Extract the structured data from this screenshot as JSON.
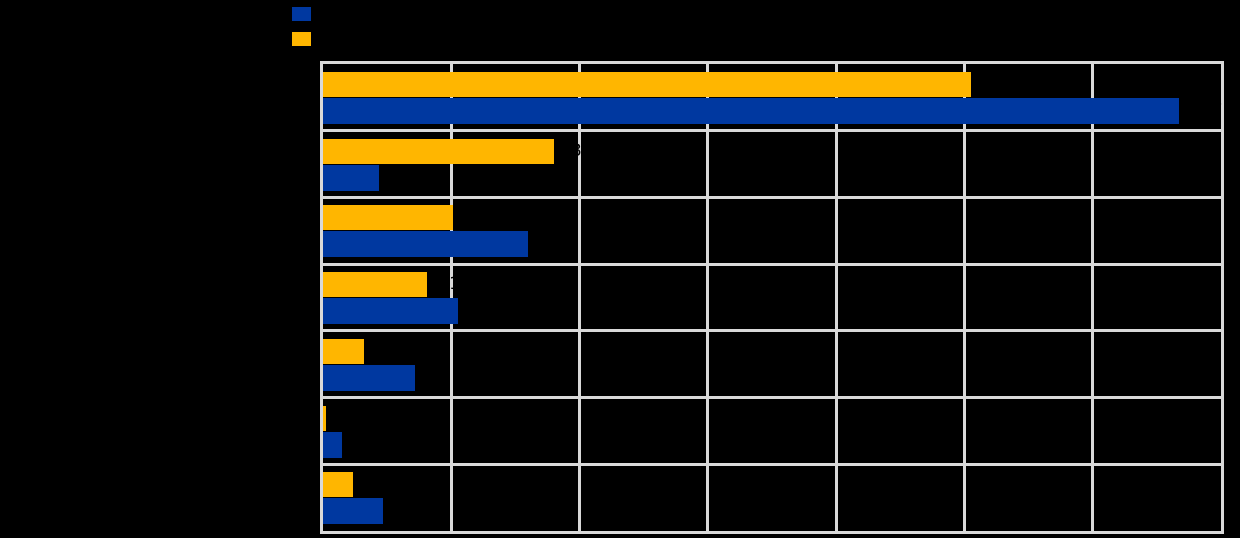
{
  "colors": {
    "background": "#000000",
    "plot_background": "#000000",
    "grid": "#d9d9d9",
    "blue": "#0038a0",
    "yellow": "#ffb600",
    "label_text": "#000000"
  },
  "legend": {
    "position": "top",
    "items": [
      {
        "name": "blue-series",
        "color": "#0038a0",
        "label": ""
      },
      {
        "name": "yellow-series",
        "color": "#ffb600",
        "label": ""
      }
    ]
  },
  "chart_data": {
    "type": "bar",
    "orientation": "horizontal",
    "title": "",
    "xlabel": "",
    "ylabel": "",
    "xlim": [
      0,
      70
    ],
    "x_gridline_step": 10,
    "grid": "both",
    "legend_position": "top-left-of-plot",
    "value_labels_decimals": 1,
    "categories": [
      "",
      "",
      "",
      "",
      "",
      "",
      ""
    ],
    "row_order_top_to_bottom_within_group": [
      "yellow",
      "blue"
    ],
    "series": [
      {
        "name": "blue",
        "color": "#0038a0",
        "values": [
          66.7,
          4.4,
          16.0,
          10.5,
          7.2,
          1.5,
          4.7
        ]
      },
      {
        "name": "yellow",
        "color": "#ffb600",
        "values": [
          50.5,
          18.0,
          10.1,
          8.1,
          3.2,
          0.2,
          2.3
        ]
      }
    ]
  }
}
